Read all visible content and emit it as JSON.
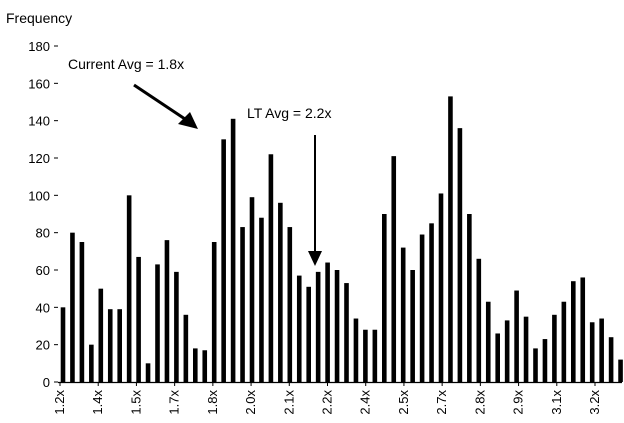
{
  "chart_data": {
    "type": "bar",
    "ylabel": "Frequency",
    "ylim": [
      0,
      180
    ],
    "yticks": [
      0,
      20,
      40,
      60,
      80,
      100,
      120,
      140,
      160,
      180
    ],
    "xtick_labels": [
      "1.2x",
      "1.4x",
      "1.5x",
      "1.7x",
      "1.8x",
      "2.0x",
      "2.1x",
      "2.2x",
      "2.4x",
      "2.5x",
      "2.7x",
      "2.8x",
      "2.9x",
      "3.1x",
      "3.2x"
    ],
    "series": [
      {
        "values": [
          40,
          80,
          75,
          20,
          50,
          39,
          39,
          100,
          67,
          10,
          63,
          76,
          59,
          36,
          18,
          17,
          75,
          130,
          141,
          83,
          99,
          88,
          122,
          96,
          83,
          57,
          51,
          59,
          64,
          60,
          53,
          34,
          28,
          28,
          90,
          121,
          72,
          60,
          79,
          85,
          101,
          153,
          136,
          90,
          66,
          43,
          26,
          33,
          49,
          35,
          18,
          23,
          36,
          43,
          54,
          56,
          32,
          34,
          24,
          12,
          4,
          3
        ]
      }
    ],
    "bar_color": "#000000",
    "grid": false,
    "annotations": [
      {
        "text": "Current Avg = 1.8x",
        "points_to": "1.8x"
      },
      {
        "text": "LT Avg = 2.2x",
        "points_to": "2.2x"
      }
    ]
  }
}
